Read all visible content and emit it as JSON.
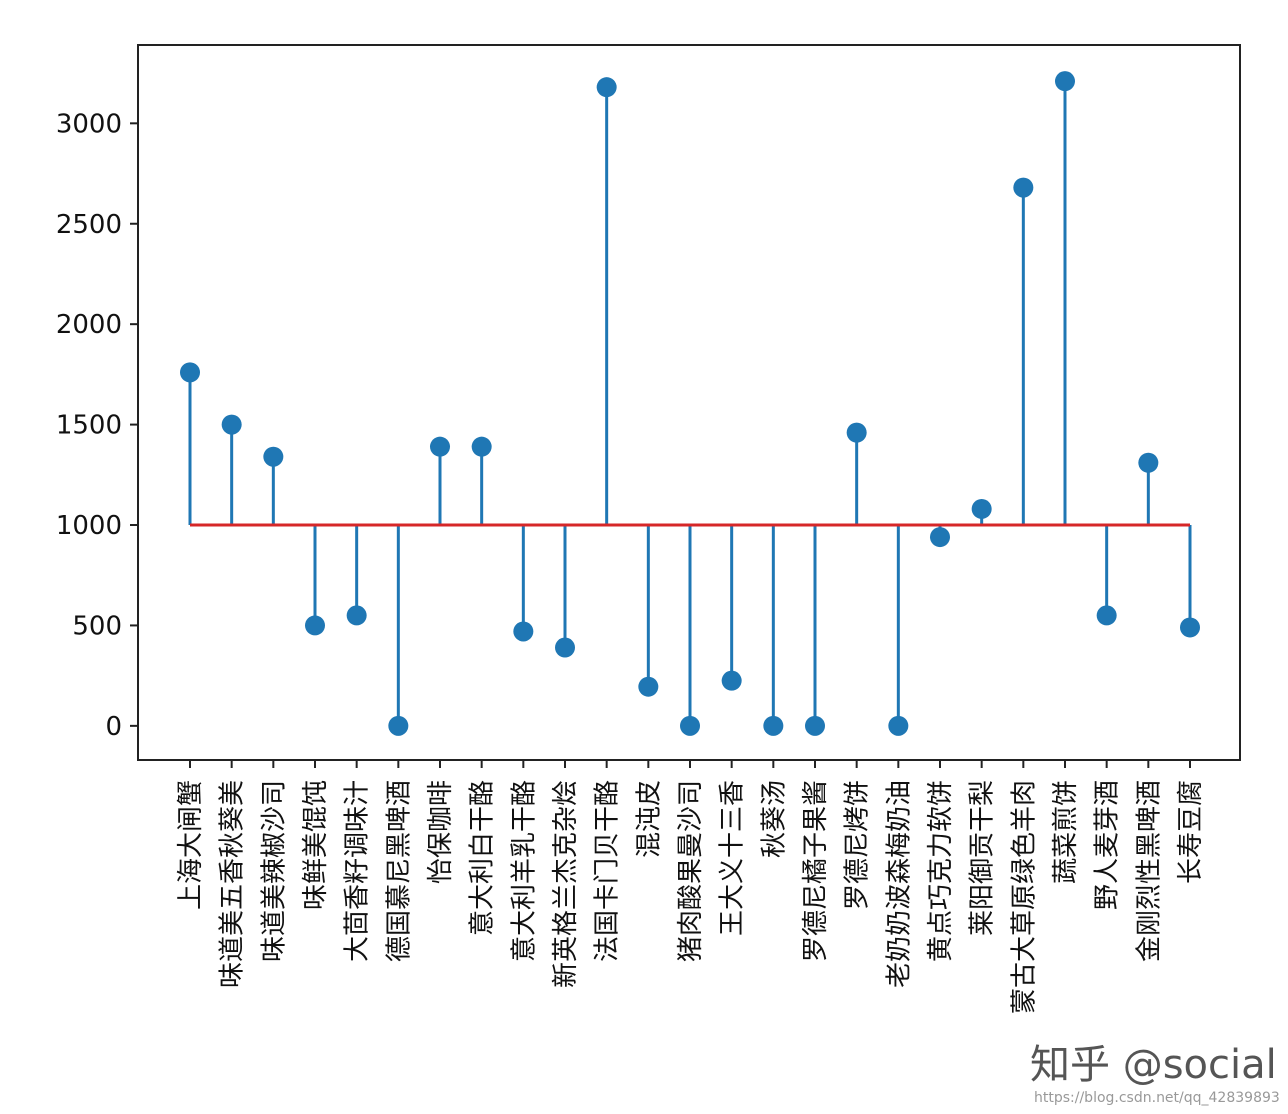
{
  "chart_data": {
    "type": "stem",
    "title": "",
    "xlabel": "",
    "ylabel": "",
    "ylim": [
      -170,
      3390
    ],
    "yticks": [
      0,
      500,
      1000,
      1500,
      2000,
      2500,
      3000
    ],
    "baseline": 1000,
    "grid": false,
    "colors": {
      "stem": "#1f77b4",
      "baseline": "#d62728",
      "axes": "#222222"
    },
    "categories": [
      "上海大闸蟹",
      "味道美五香秋葵美",
      "味道美辣椒沙司",
      "味鲜美馄饨",
      "大茴香籽调味汁",
      "德国慕尼黑啤酒",
      "怡保咖啡",
      "意大利白干酪",
      "意大利羊乳干酪",
      "新英格兰杰克杂烩",
      "法国卡门贝干酪",
      "混沌皮",
      "猪肉酸果曼沙司",
      "王大义十三香",
      "秋葵汤",
      "罗德尼橘子果酱",
      "罗德尼烤饼",
      "老奶奶波森梅奶油",
      "黄点巧克力软饼",
      "莱阳御贡干梨",
      "蒙古大草原绿色羊肉",
      "蔬菜煎饼",
      "野人麦芽酒",
      "金刚烈性黑啤酒",
      "长寿豆腐"
    ],
    "values": [
      1760,
      1500,
      1340,
      500,
      550,
      0,
      1390,
      1390,
      470,
      390,
      3180,
      195,
      0,
      225,
      0,
      0,
      1460,
      0,
      940,
      1080,
      2680,
      3210,
      550,
      1310,
      490
    ]
  },
  "watermark": {
    "text": "知乎 @social",
    "url": "https://blog.csdn.net/qq_42839893"
  }
}
